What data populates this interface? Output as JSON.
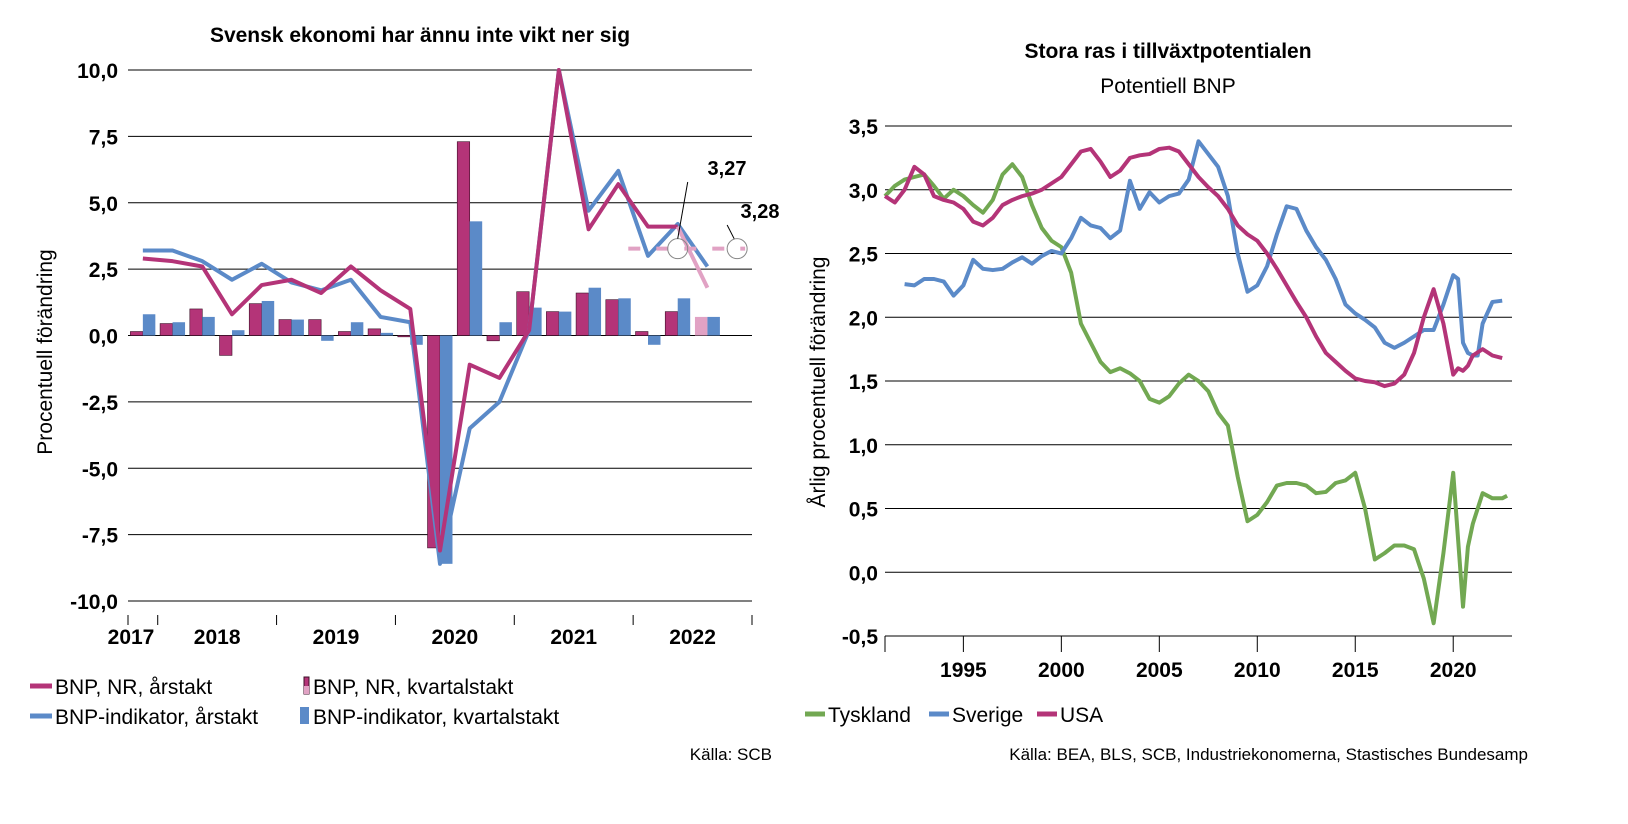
{
  "colors": {
    "magenta": "#b43478",
    "magenta_light": "#e1a2c4",
    "blue": "#5b8ac8",
    "green": "#72a852",
    "grid": "#000000"
  },
  "chart_data": [
    {
      "type": "bar",
      "title": "Svensk ekonomi har ännu inte vikt ner sig",
      "ylabel": "Procentuell förändring",
      "ylim": [
        -10,
        10
      ],
      "yticks": [
        "10,0",
        "7,5",
        "5,0",
        "2,5",
        "0,0",
        "-2,5",
        "-5,0",
        "-7,5",
        "-10,0"
      ],
      "ytick_values": [
        10,
        7.5,
        5,
        2.5,
        0,
        -2.5,
        -5,
        -7.5,
        -10
      ],
      "year_labels": [
        "2017",
        "2018",
        "2019",
        "2020",
        "2021",
        "2022"
      ],
      "quarters": [
        "2017Q4",
        "2018Q1",
        "2018Q2",
        "2018Q3",
        "2018Q4",
        "2019Q1",
        "2019Q2",
        "2019Q3",
        "2019Q4",
        "2020Q1",
        "2020Q2",
        "2020Q3",
        "2020Q4",
        "2021Q1",
        "2021Q2",
        "2021Q3",
        "2021Q4",
        "2022Q1",
        "2022Q2",
        "2022Q3",
        "2022Q4"
      ],
      "series": [
        {
          "name": "BNP, NR, årstakt",
          "kind": "line",
          "values": [
            2.9,
            2.8,
            2.6,
            0.8,
            1.9,
            2.1,
            1.6,
            2.6,
            1.7,
            1.0,
            -8.1,
            -1.1,
            -1.6,
            0.2,
            10.0,
            4.0,
            5.7,
            4.1,
            4.1,
            1.8,
            null
          ]
        },
        {
          "name": "BNP, NR, kvartalstakt",
          "kind": "bar",
          "values": [
            0.15,
            0.45,
            1.0,
            -0.75,
            1.2,
            0.6,
            0.6,
            0.15,
            0.25,
            -0.05,
            -8.0,
            7.3,
            -0.2,
            1.65,
            0.9,
            1.6,
            1.35,
            0.15,
            0.9,
            0.7,
            null
          ]
        },
        {
          "name": "BNP-indikator, årstakt",
          "kind": "line",
          "values": [
            3.2,
            3.2,
            2.8,
            2.1,
            2.7,
            2.0,
            1.7,
            2.1,
            0.7,
            0.5,
            -8.6,
            -3.5,
            -2.5,
            0.2,
            10.0,
            4.7,
            6.2,
            3.0,
            4.2,
            2.6,
            null
          ]
        },
        {
          "name": "BNP-indikator, kvartalstakt",
          "kind": "bar",
          "values": [
            0.8,
            0.5,
            0.7,
            0.2,
            1.3,
            0.6,
            -0.2,
            0.5,
            0.1,
            -0.35,
            -8.6,
            4.3,
            0.5,
            1.05,
            0.9,
            1.8,
            1.4,
            -0.35,
            1.4,
            0.7,
            null
          ]
        }
      ],
      "annotations": [
        {
          "text": "3,27",
          "value": 3.27
        },
        {
          "text": "3,28",
          "value": 3.28
        }
      ],
      "legend": [
        "BNP, NR, årstakt",
        "BNP, NR, kvartalstakt",
        "BNP-indikator, årstakt",
        "BNP-indikator, kvartalstakt"
      ],
      "legend_position": "bottom",
      "source": "Källa: SCB",
      "grid": true
    },
    {
      "type": "line",
      "title": "Stora ras i tillväxtpotentialen",
      "subtitle": "Potentiell BNP",
      "ylabel": "Årlig procentuell förändring",
      "ylim": [
        -0.5,
        3.5
      ],
      "yticks": [
        "3,5",
        "3,0",
        "2,5",
        "2,0",
        "1,5",
        "1,0",
        "0,5",
        "0,0",
        "-0,5"
      ],
      "ytick_values": [
        3.5,
        3.0,
        2.5,
        2.0,
        1.5,
        1.0,
        0.5,
        0.0,
        -0.5
      ],
      "xlim": [
        1991,
        2023
      ],
      "xticks": [
        "1995",
        "2000",
        "2005",
        "2010",
        "2015",
        "2020"
      ],
      "xtick_values": [
        1995,
        2000,
        2005,
        2010,
        2015,
        2020
      ],
      "series": [
        {
          "name": "Tyskland",
          "x": [
            1991.0,
            1991.5,
            1992.0,
            1992.5,
            1993.0,
            1993.5,
            1994.0,
            1994.5,
            1995.0,
            1995.5,
            1996.0,
            1996.5,
            1997.0,
            1997.5,
            1998.0,
            1998.5,
            1999.0,
            1999.5,
            2000.0,
            2000.5,
            2001.0,
            2001.5,
            2002.0,
            2002.5,
            2003.0,
            2003.5,
            2004.0,
            2004.5,
            2005.0,
            2005.5,
            2006.0,
            2006.5,
            2007.0,
            2007.5,
            2008.0,
            2008.5,
            2009.0,
            2009.5,
            2010.0,
            2010.5,
            2011.0,
            2011.5,
            2012.0,
            2012.5,
            2013.0,
            2013.5,
            2014.0,
            2014.5,
            2015.0,
            2015.5,
            2016.0,
            2016.5,
            2017.0,
            2017.5,
            2018.0,
            2018.5,
            2019.0,
            2019.5,
            2020.0,
            2020.5,
            2020.75,
            2021.0,
            2021.5,
            2022.0,
            2022.5,
            2022.75
          ],
          "y": [
            2.95,
            3.03,
            3.08,
            3.1,
            3.12,
            3.03,
            2.93,
            3.0,
            2.95,
            2.88,
            2.82,
            2.92,
            3.12,
            3.2,
            3.1,
            2.88,
            2.7,
            2.6,
            2.55,
            2.35,
            1.95,
            1.8,
            1.65,
            1.57,
            1.6,
            1.56,
            1.5,
            1.36,
            1.33,
            1.38,
            1.48,
            1.55,
            1.5,
            1.42,
            1.25,
            1.15,
            0.75,
            0.4,
            0.45,
            0.55,
            0.68,
            0.7,
            0.7,
            0.68,
            0.62,
            0.63,
            0.7,
            0.72,
            0.78,
            0.5,
            0.1,
            0.15,
            0.21,
            0.21,
            0.18,
            -0.05,
            -0.4,
            0.15,
            0.78,
            -0.27,
            0.2,
            0.38,
            0.62,
            0.58,
            0.58,
            0.6
          ]
        },
        {
          "name": "Sverige",
          "x": [
            1992.0,
            1992.5,
            1993.0,
            1993.5,
            1994.0,
            1994.5,
            1995.0,
            1995.5,
            1996.0,
            1996.5,
            1997.0,
            1997.5,
            1998.0,
            1998.5,
            1999.0,
            1999.5,
            2000.0,
            2000.5,
            2001.0,
            2001.5,
            2002.0,
            2002.5,
            2003.0,
            2003.5,
            2004.0,
            2004.5,
            2005.0,
            2005.5,
            2006.0,
            2006.5,
            2007.0,
            2007.5,
            2008.0,
            2008.5,
            2009.0,
            2009.5,
            2010.0,
            2010.5,
            2011.0,
            2011.5,
            2012.0,
            2012.5,
            2013.0,
            2013.5,
            2014.0,
            2014.5,
            2015.0,
            2015.5,
            2016.0,
            2016.5,
            2017.0,
            2017.5,
            2018.0,
            2018.5,
            2019.0,
            2019.5,
            2020.0,
            2020.25,
            2020.5,
            2020.75,
            2021.0,
            2021.25,
            2021.5,
            2022.0,
            2022.5
          ],
          "y": [
            2.26,
            2.25,
            2.3,
            2.3,
            2.28,
            2.17,
            2.25,
            2.45,
            2.38,
            2.37,
            2.38,
            2.43,
            2.47,
            2.42,
            2.48,
            2.52,
            2.5,
            2.62,
            2.78,
            2.72,
            2.7,
            2.62,
            2.68,
            3.07,
            2.85,
            2.98,
            2.9,
            2.95,
            2.97,
            3.08,
            3.38,
            3.28,
            3.18,
            2.95,
            2.5,
            2.2,
            2.25,
            2.4,
            2.65,
            2.87,
            2.85,
            2.68,
            2.55,
            2.45,
            2.3,
            2.1,
            2.03,
            1.98,
            1.92,
            1.8,
            1.76,
            1.8,
            1.85,
            1.9,
            1.9,
            2.1,
            2.33,
            2.3,
            1.8,
            1.72,
            1.7,
            1.7,
            1.95,
            2.12,
            2.13
          ]
        },
        {
          "name": "USA",
          "x": [
            1991.0,
            1991.5,
            1992.0,
            1992.5,
            1993.0,
            1993.5,
            1994.0,
            1994.5,
            1995.0,
            1995.5,
            1996.0,
            1996.5,
            1997.0,
            1997.5,
            1998.0,
            1998.5,
            1999.0,
            1999.5,
            2000.0,
            2000.5,
            2001.0,
            2001.5,
            2002.0,
            2002.5,
            2003.0,
            2003.5,
            2004.0,
            2004.5,
            2005.0,
            2005.5,
            2006.0,
            2006.5,
            2007.0,
            2007.5,
            2008.0,
            2008.5,
            2009.0,
            2009.5,
            2010.0,
            2010.5,
            2011.0,
            2011.5,
            2012.0,
            2012.5,
            2013.0,
            2013.5,
            2014.0,
            2014.5,
            2015.0,
            2015.5,
            2016.0,
            2016.5,
            2017.0,
            2017.5,
            2018.0,
            2018.5,
            2019.0,
            2019.5,
            2020.0,
            2020.25,
            2020.5,
            2020.75,
            2021.0,
            2021.5,
            2022.0,
            2022.5
          ],
          "y": [
            2.95,
            2.9,
            3.0,
            3.18,
            3.12,
            2.95,
            2.92,
            2.9,
            2.85,
            2.75,
            2.72,
            2.78,
            2.88,
            2.92,
            2.95,
            2.97,
            3.0,
            3.05,
            3.1,
            3.2,
            3.3,
            3.32,
            3.22,
            3.1,
            3.15,
            3.25,
            3.27,
            3.28,
            3.32,
            3.33,
            3.3,
            3.2,
            3.1,
            3.02,
            2.95,
            2.85,
            2.72,
            2.65,
            2.6,
            2.5,
            2.38,
            2.25,
            2.12,
            2.0,
            1.85,
            1.72,
            1.65,
            1.58,
            1.52,
            1.5,
            1.49,
            1.46,
            1.48,
            1.55,
            1.72,
            2.0,
            2.22,
            1.95,
            1.55,
            1.6,
            1.58,
            1.62,
            1.7,
            1.75,
            1.7,
            1.68
          ]
        }
      ],
      "legend": [
        "Tyskland",
        "Sverige",
        "USA"
      ],
      "legend_position": "bottom",
      "source": "Källa: BEA, BLS, SCB, Industriekonomerna, Stastisches Bundesamp",
      "grid": true
    }
  ]
}
